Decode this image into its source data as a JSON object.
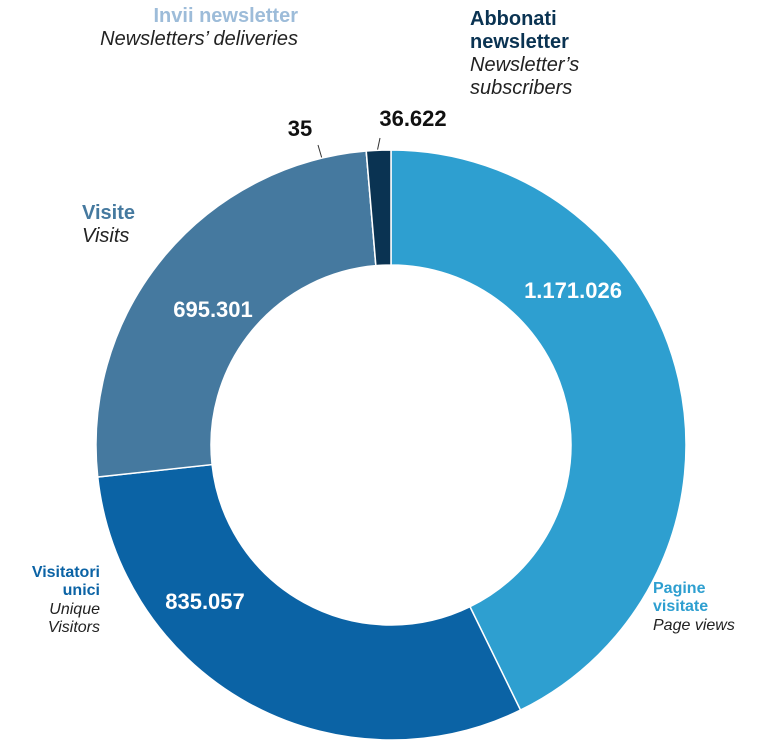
{
  "chart_data": {
    "type": "donut",
    "categories": [
      "Pagine visitate",
      "Visitatori unici",
      "Visite",
      "Invii newsletter",
      "Abbonati newsletter"
    ],
    "category_subtitles": [
      "Page views",
      "Unique Visitors",
      "Visits",
      "Newsletters’ deliveries",
      "Newsletter’s subscribers"
    ],
    "values": [
      1171026,
      835057,
      695301,
      35,
      36622
    ],
    "value_labels": [
      "1.171.026",
      "835.057",
      "695.301",
      "35",
      "36.622"
    ],
    "colors": [
      "#2e9fd0",
      "#0b63a5",
      "#45799f",
      "#9dbcd9",
      "#0a3352"
    ]
  }
}
